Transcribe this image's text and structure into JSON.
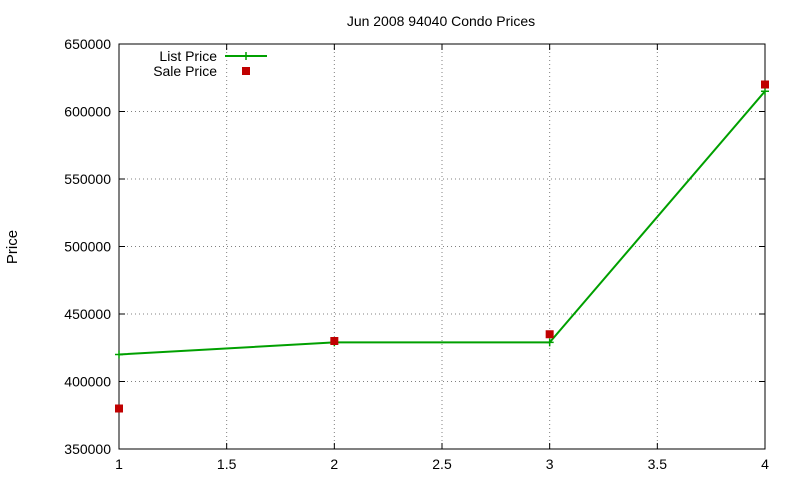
{
  "chart_data": {
    "type": "line",
    "title": "Jun 2008 94040 Condo Prices",
    "xlabel": "",
    "ylabel": "Price",
    "xlim": [
      1,
      4
    ],
    "ylim": [
      350000,
      650000
    ],
    "xticks": [
      "1",
      "1.5",
      "2",
      "2.5",
      "3",
      "3.5",
      "4"
    ],
    "yticks": [
      "350000",
      "400000",
      "450000",
      "500000",
      "550000",
      "600000",
      "650000"
    ],
    "grid": true,
    "legend_position": "top-left",
    "series": [
      {
        "name": "List Price",
        "style": "line-with-plus-markers",
        "color": "#00a000",
        "x": [
          1,
          2,
          3,
          4
        ],
        "y": [
          420000,
          429000,
          429000,
          615000
        ]
      },
      {
        "name": "Sale Price",
        "style": "square-markers",
        "color": "#c00000",
        "x": [
          1,
          2,
          3,
          4
        ],
        "y": [
          380000,
          430000,
          435000,
          620000
        ]
      }
    ]
  }
}
